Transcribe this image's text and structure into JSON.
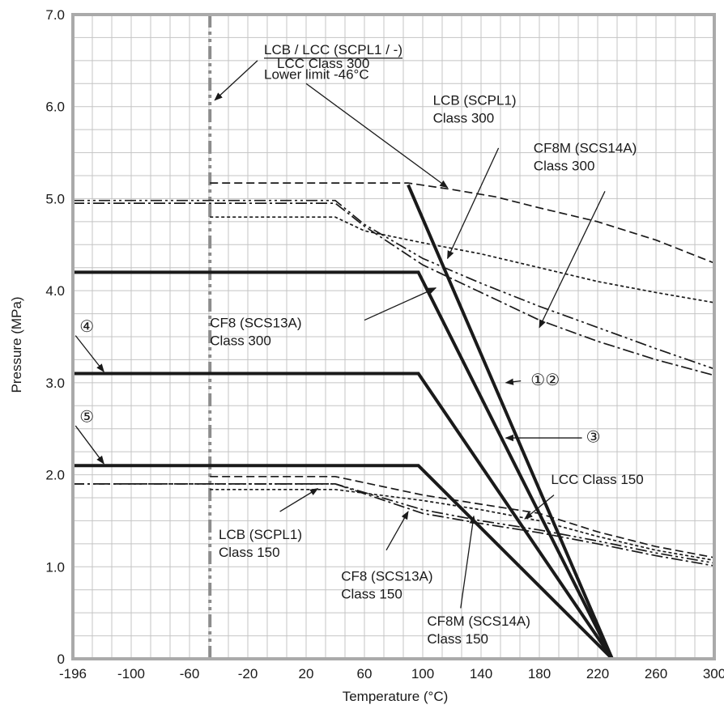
{
  "chart_data": {
    "type": "line",
    "title": "",
    "xlabel": "Temperature (°C)",
    "ylabel": "Pressure (MPa)",
    "x_tick_labels": [
      "-196",
      "-100",
      "-60",
      "-20",
      "20",
      "60",
      "100",
      "140",
      "180",
      "220",
      "260",
      "300"
    ],
    "y_tick_labels": [
      "0",
      "1.0",
      "2.0",
      "3.0",
      "4.0",
      "5.0",
      "6.0",
      "7.0"
    ],
    "y_ticks": [
      0,
      1,
      2,
      3,
      4,
      5,
      6,
      7
    ],
    "ylim": [
      0,
      7
    ],
    "grid": true,
    "colors": {
      "axis_frame": "#aaaaaa",
      "grid": "#c4c4c4",
      "series": "#1a1a1a",
      "limit_line": "#8c8c8c"
    },
    "vertical_reference": {
      "x_label": "-46",
      "style": "dash-dot-dot",
      "title_line1": "LCB / LCC (SCPL1 / -)",
      "title_line2": "Lower limit -46°C"
    },
    "series": [
      {
        "id": "lcc300",
        "style": "dashed",
        "width": 1.7,
        "points": [
          [
            "-46",
            5.17
          ],
          [
            "90",
            5.17
          ],
          [
            "120",
            5.1
          ],
          [
            "150",
            5.02
          ],
          [
            "180",
            4.9
          ],
          [
            "220",
            4.75
          ],
          [
            "260",
            4.55
          ],
          [
            "300",
            4.3
          ]
        ]
      },
      {
        "id": "lcb300",
        "style": "dotted",
        "width": 1.7,
        "points": [
          [
            "-46",
            4.8
          ],
          [
            "40",
            4.8
          ],
          [
            "60",
            4.65
          ],
          [
            "100",
            4.52
          ],
          [
            "140",
            4.4
          ],
          [
            "180",
            4.25
          ],
          [
            "220",
            4.1
          ],
          [
            "260",
            3.98
          ],
          [
            "300",
            3.87
          ]
        ]
      },
      {
        "id": "cf8m300",
        "style": "dash-dot-dot",
        "width": 1.7,
        "points": [
          [
            "-196",
            4.98
          ],
          [
            "40",
            4.98
          ],
          [
            "60",
            4.72
          ],
          [
            "100",
            4.35
          ],
          [
            "140",
            4.08
          ],
          [
            "180",
            3.83
          ],
          [
            "220",
            3.6
          ],
          [
            "260",
            3.37
          ],
          [
            "300",
            3.15
          ]
        ]
      },
      {
        "id": "cf8_300",
        "style": "dash-dot",
        "width": 1.7,
        "points": [
          [
            "-196",
            4.95
          ],
          [
            "40",
            4.95
          ],
          [
            "60",
            4.7
          ],
          [
            "100",
            4.28
          ],
          [
            "140",
            3.98
          ],
          [
            "180",
            3.68
          ],
          [
            "220",
            3.45
          ],
          [
            "260",
            3.25
          ],
          [
            "300",
            3.08
          ]
        ]
      },
      {
        "id": "lcc150",
        "style": "dashed",
        "width": 1.7,
        "points": [
          [
            "-46",
            1.98
          ],
          [
            "40",
            1.98
          ],
          [
            "100",
            1.78
          ],
          [
            "140",
            1.68
          ],
          [
            "180",
            1.58
          ],
          [
            "220",
            1.38
          ],
          [
            "260",
            1.22
          ],
          [
            "300",
            1.1
          ]
        ]
      },
      {
        "id": "lcb150",
        "style": "dotted",
        "width": 1.7,
        "points": [
          [
            "-46",
            1.84
          ],
          [
            "40",
            1.84
          ],
          [
            "100",
            1.72
          ],
          [
            "140",
            1.62
          ],
          [
            "180",
            1.5
          ],
          [
            "220",
            1.33
          ],
          [
            "260",
            1.18
          ],
          [
            "300",
            1.07
          ]
        ]
      },
      {
        "id": "cf8m150",
        "style": "dash-dot-dot",
        "width": 1.7,
        "points": [
          [
            "-196",
            1.9
          ],
          [
            "40",
            1.9
          ],
          [
            "100",
            1.62
          ],
          [
            "140",
            1.5
          ],
          [
            "180",
            1.4
          ],
          [
            "220",
            1.28
          ],
          [
            "260",
            1.15
          ],
          [
            "300",
            1.04
          ]
        ]
      },
      {
        "id": "cf8_150",
        "style": "dash-dot",
        "width": 1.7,
        "points": [
          [
            "-196",
            1.9
          ],
          [
            "40",
            1.9
          ],
          [
            "100",
            1.58
          ],
          [
            "140",
            1.47
          ],
          [
            "180",
            1.37
          ],
          [
            "220",
            1.25
          ],
          [
            "260",
            1.12
          ],
          [
            "300",
            1.01
          ]
        ]
      },
      {
        "id": "limit12",
        "style": "solid",
        "width": 4,
        "points": [
          [
            "90",
            5.15
          ],
          [
            "230",
            0
          ]
        ]
      },
      {
        "id": "limit3",
        "style": "solid",
        "width": 4,
        "points": [
          [
            "-196",
            4.2
          ],
          [
            "97",
            4.2
          ],
          [
            "230",
            0
          ]
        ]
      },
      {
        "id": "limit4",
        "style": "solid",
        "width": 4,
        "points": [
          [
            "-196",
            3.1
          ],
          [
            "97",
            3.1
          ],
          [
            "230",
            0
          ]
        ]
      },
      {
        "id": "limit5",
        "style": "solid",
        "width": 4,
        "points": [
          [
            "-196",
            2.1
          ],
          [
            "97",
            2.1
          ],
          [
            "230",
            0
          ]
        ]
      }
    ],
    "annotations": [
      {
        "id": "lcc300-label",
        "lines": [
          "LCC Class 300"
        ],
        "anchor": "start",
        "tx": "0",
        "ty": 6.42,
        "arrow_from": [
          "20",
          6.25
        ],
        "arrow_to": [
          "117",
          5.12
        ]
      },
      {
        "id": "lcb300-label",
        "lines": [
          "LCB (SCPL1)",
          "Class 300"
        ],
        "anchor": "start",
        "tx": "107",
        "ty": 6.02,
        "arrow_from": [
          "152",
          5.55
        ],
        "arrow_to": [
          "117",
          4.35
        ]
      },
      {
        "id": "cf8m300-label",
        "lines": [
          "CF8M (SCS14A)",
          "Class 300"
        ],
        "anchor": "start",
        "tx": "176",
        "ty": 5.5,
        "arrow_from": [
          "225",
          5.08
        ],
        "arrow_to": [
          "180",
          3.6
        ]
      },
      {
        "id": "cf8-300-label",
        "lines": [
          "CF8 (SCS13A)",
          "Class 300"
        ],
        "anchor": "start",
        "tx": "-46",
        "ty": 3.6,
        "arrow_from": [
          "60",
          3.68
        ],
        "arrow_to": [
          "109",
          4.03
        ]
      },
      {
        "id": "lcc150-label",
        "lines": [
          "LCC Class 150"
        ],
        "anchor": "start",
        "tx": "188",
        "ty": 1.9,
        "arrow_from": [
          "190",
          1.78
        ],
        "arrow_to": [
          "170",
          1.52
        ]
      },
      {
        "id": "lcb150-label",
        "lines": [
          "LCB (SCPL1)",
          "Class 150"
        ],
        "anchor": "start",
        "tx": "-40",
        "ty": 1.3,
        "arrow_from": [
          "2",
          1.6
        ],
        "arrow_to": [
          "28",
          1.85
        ]
      },
      {
        "id": "cf8-150-label",
        "lines": [
          "CF8 (SCS13A)",
          "Class 150"
        ],
        "anchor": "start",
        "tx": "44",
        "ty": 0.85,
        "arrow_from": [
          "75",
          1.18
        ],
        "arrow_to": [
          "90",
          1.6
        ]
      },
      {
        "id": "cf8m150-label",
        "lines": [
          "CF8M (SCS14A)",
          "Class 150"
        ],
        "anchor": "start",
        "tx": "103",
        "ty": 0.36,
        "arrow_from": [
          "126",
          0.55
        ],
        "arrow_to": [
          "135",
          1.55
        ]
      }
    ],
    "markers": [
      {
        "id": "marker-4",
        "text": "④",
        "cx": "-173",
        "cy": 3.6,
        "arrow_to": [
          "-145",
          3.12
        ]
      },
      {
        "id": "marker-5",
        "text": "⑤",
        "cx": "-173",
        "cy": 2.62,
        "arrow_to": [
          "-145",
          2.12
        ]
      },
      {
        "id": "marker-12",
        "text": "①②",
        "cx": "184",
        "cy": 3.02,
        "arrow_to": [
          "157",
          3.0
        ]
      },
      {
        "id": "marker-3",
        "text": "③",
        "cx": "217",
        "cy": 2.4,
        "arrow_to": [
          "157",
          2.4
        ]
      }
    ]
  }
}
